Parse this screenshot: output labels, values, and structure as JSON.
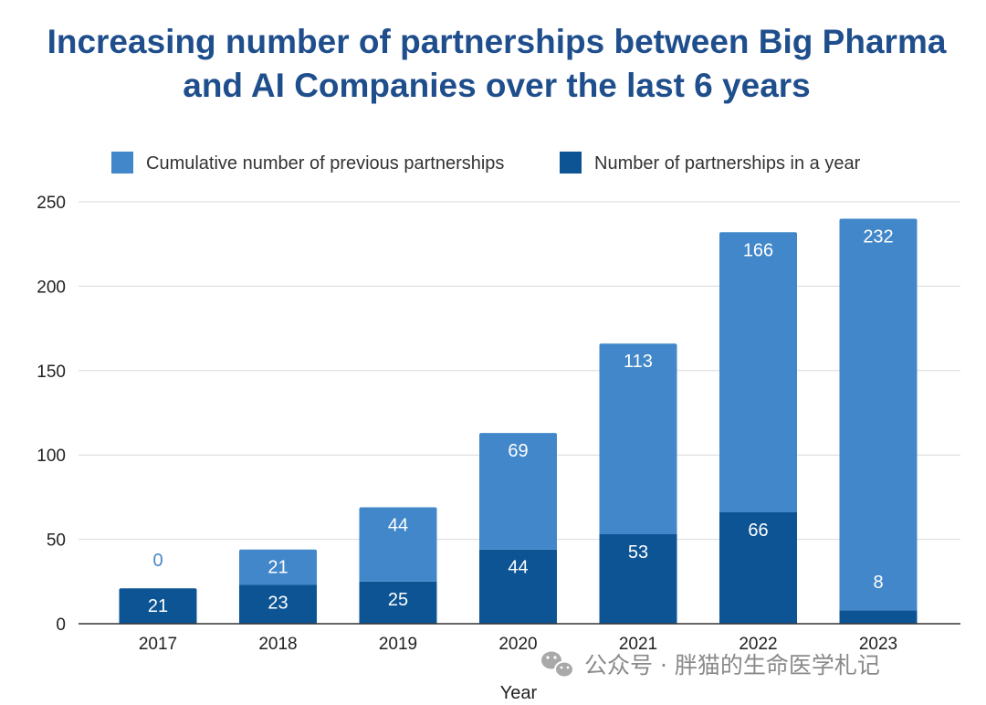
{
  "colors": {
    "title": "#1f4e8c",
    "cumulative": "#4287c9",
    "yearly": "#0d5494",
    "grid": "#d9d9d9",
    "axis": "#333333",
    "label_inside": "#ffffff",
    "label_outside": "#4a87c6",
    "watermark": "#8a8a8a"
  },
  "chart_data": {
    "type": "bar",
    "stacked": true,
    "title": "Increasing number of partnerships between Big Pharma and AI Companies over the last 6 years",
    "title_lines": [
      "Increasing number of partnerships between Big Pharma",
      "and AI Companies over the last 6 years"
    ],
    "xlabel": "Year",
    "ylabel": "",
    "ylim": [
      0,
      250
    ],
    "yticks": [
      "0",
      "50",
      "100",
      "150",
      "200",
      "250"
    ],
    "categories": [
      "2017",
      "2018",
      "2019",
      "2020",
      "2021",
      "2022",
      "2023"
    ],
    "series": [
      {
        "name": "Number of partnerships in a year",
        "values": [
          21,
          23,
          25,
          44,
          53,
          66,
          8
        ]
      },
      {
        "name": "Cumulative number of previous partnerships",
        "values": [
          0,
          21,
          44,
          69,
          113,
          166,
          232
        ]
      }
    ],
    "legend": {
      "placement": "top",
      "order": [
        "Cumulative number of previous partnerships",
        "Number of partnerships in a year"
      ]
    },
    "grid": true
  },
  "watermark": {
    "icon": "wechat-icon",
    "text": "公众号 · 胖猫的生命医学札记"
  }
}
